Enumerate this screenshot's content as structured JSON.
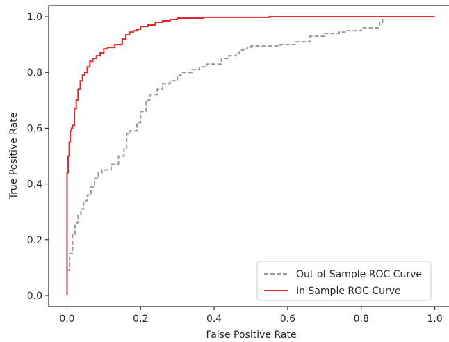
{
  "chart_data": {
    "type": "line",
    "xlabel": "False Positive Rate",
    "ylabel": "True Positive Rate",
    "xlim": [
      -0.05,
      1.05
    ],
    "ylim": [
      -0.04,
      1.04
    ],
    "xticks": [
      0.0,
      0.2,
      0.4,
      0.6,
      0.8,
      1.0
    ],
    "xtick_labels": [
      "0.0",
      "0.2",
      "0.4",
      "0.6",
      "0.8",
      "1.0"
    ],
    "yticks": [
      0.0,
      0.2,
      0.4,
      0.6,
      0.8,
      1.0
    ],
    "ytick_labels": [
      "0.0",
      "0.2",
      "0.4",
      "0.6",
      "0.8",
      "1.0"
    ],
    "grid": false,
    "legend_position": "lower-right",
    "series": [
      {
        "name": "Out of Sample ROC Curve",
        "color": "#999999",
        "style": "dashed",
        "x": [
          0.0,
          0.0,
          0.007,
          0.007,
          0.015,
          0.015,
          0.022,
          0.022,
          0.03,
          0.03,
          0.038,
          0.038,
          0.045,
          0.045,
          0.055,
          0.055,
          0.065,
          0.065,
          0.075,
          0.075,
          0.085,
          0.085,
          0.095,
          0.095,
          0.12,
          0.12,
          0.14,
          0.14,
          0.155,
          0.155,
          0.162,
          0.162,
          0.17,
          0.17,
          0.19,
          0.19,
          0.2,
          0.2,
          0.215,
          0.215,
          0.225,
          0.225,
          0.245,
          0.245,
          0.26,
          0.26,
          0.28,
          0.28,
          0.3,
          0.3,
          0.31,
          0.31,
          0.34,
          0.34,
          0.36,
          0.36,
          0.38,
          0.38,
          0.42,
          0.42,
          0.44,
          0.44,
          0.46,
          0.46,
          0.47,
          0.47,
          0.48,
          0.48,
          0.49,
          0.49,
          0.5,
          0.5,
          0.58,
          0.58,
          0.62,
          0.62,
          0.66,
          0.66,
          0.7,
          0.7,
          0.74,
          0.74,
          0.76,
          0.76,
          0.8,
          0.8,
          0.85,
          0.85,
          0.858,
          0.858,
          1.0
        ],
        "y": [
          0.0,
          0.09,
          0.09,
          0.15,
          0.15,
          0.22,
          0.22,
          0.26,
          0.26,
          0.29,
          0.29,
          0.31,
          0.31,
          0.34,
          0.34,
          0.36,
          0.36,
          0.39,
          0.39,
          0.42,
          0.42,
          0.44,
          0.44,
          0.45,
          0.45,
          0.47,
          0.47,
          0.5,
          0.5,
          0.53,
          0.53,
          0.58,
          0.58,
          0.59,
          0.59,
          0.62,
          0.62,
          0.66,
          0.66,
          0.7,
          0.7,
          0.72,
          0.72,
          0.74,
          0.74,
          0.76,
          0.76,
          0.77,
          0.77,
          0.79,
          0.79,
          0.8,
          0.8,
          0.81,
          0.81,
          0.82,
          0.82,
          0.83,
          0.83,
          0.85,
          0.85,
          0.86,
          0.86,
          0.87,
          0.87,
          0.88,
          0.88,
          0.885,
          0.885,
          0.89,
          0.89,
          0.895,
          0.895,
          0.9,
          0.9,
          0.91,
          0.91,
          0.93,
          0.93,
          0.94,
          0.94,
          0.945,
          0.945,
          0.95,
          0.95,
          0.96,
          0.96,
          0.98,
          0.98,
          1.0,
          1.0
        ]
      },
      {
        "name": "In Sample ROC Curve",
        "color": "#e8262b",
        "style": "solid",
        "x": [
          0.0,
          0.0,
          0.003,
          0.003,
          0.006,
          0.006,
          0.009,
          0.009,
          0.012,
          0.012,
          0.015,
          0.015,
          0.02,
          0.02,
          0.025,
          0.025,
          0.03,
          0.03,
          0.036,
          0.036,
          0.042,
          0.042,
          0.048,
          0.048,
          0.055,
          0.055,
          0.062,
          0.062,
          0.07,
          0.07,
          0.08,
          0.08,
          0.09,
          0.09,
          0.1,
          0.1,
          0.11,
          0.11,
          0.13,
          0.13,
          0.15,
          0.15,
          0.16,
          0.16,
          0.17,
          0.17,
          0.18,
          0.18,
          0.19,
          0.19,
          0.2,
          0.2,
          0.22,
          0.22,
          0.24,
          0.24,
          0.26,
          0.26,
          0.28,
          0.28,
          0.3,
          0.3,
          0.37,
          0.37,
          0.55,
          0.55,
          1.0
        ],
        "y": [
          0.0,
          0.44,
          0.44,
          0.5,
          0.5,
          0.55,
          0.55,
          0.59,
          0.59,
          0.6,
          0.6,
          0.61,
          0.61,
          0.67,
          0.67,
          0.7,
          0.7,
          0.74,
          0.74,
          0.77,
          0.77,
          0.79,
          0.79,
          0.8,
          0.8,
          0.82,
          0.82,
          0.84,
          0.84,
          0.85,
          0.85,
          0.86,
          0.86,
          0.87,
          0.87,
          0.885,
          0.885,
          0.89,
          0.89,
          0.9,
          0.9,
          0.92,
          0.92,
          0.935,
          0.935,
          0.945,
          0.945,
          0.95,
          0.95,
          0.955,
          0.955,
          0.965,
          0.965,
          0.97,
          0.97,
          0.98,
          0.98,
          0.985,
          0.985,
          0.99,
          0.99,
          0.995,
          0.995,
          0.998,
          0.998,
          1.0,
          1.0
        ]
      }
    ]
  }
}
